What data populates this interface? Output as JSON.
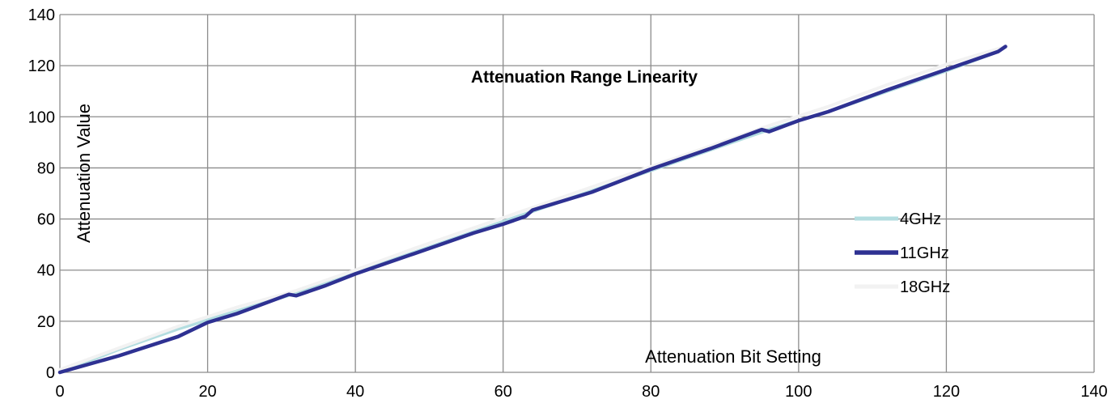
{
  "chart_data": {
    "type": "line",
    "title": "Attenuation Range Linearity",
    "xlabel": "Attenuation Bit Setting",
    "ylabel": "Attenuation Value",
    "xlim": [
      0,
      140
    ],
    "ylim": [
      0,
      140
    ],
    "xticks": [
      0,
      20,
      40,
      60,
      80,
      100,
      120,
      140
    ],
    "yticks": [
      0,
      20,
      40,
      60,
      80,
      100,
      120,
      140
    ],
    "grid": true,
    "legend_position": "right",
    "series": [
      {
        "name": "4GHz",
        "color": "#b3dde0",
        "x": [
          0,
          8,
          16,
          24,
          32,
          40,
          48,
          56,
          64,
          72,
          80,
          88,
          96,
          104,
          112,
          120,
          127
        ],
        "y": [
          0,
          9,
          17,
          24,
          31,
          39,
          47,
          55,
          63,
          71,
          79,
          87,
          95,
          102,
          110,
          118,
          125.5
        ]
      },
      {
        "name": "11GHz",
        "color": "#2e3192",
        "x": [
          0,
          8,
          16,
          20,
          24,
          31,
          32,
          36,
          40,
          48,
          56,
          60,
          63,
          64,
          68,
          72,
          80,
          88,
          95,
          96,
          100,
          104,
          112,
          120,
          127,
          128
        ],
        "y": [
          0,
          6.5,
          14,
          19.5,
          23,
          30.5,
          30,
          34,
          38.5,
          46.5,
          54.5,
          58,
          61,
          63.5,
          67,
          70.5,
          79.5,
          87.5,
          95,
          94.2,
          98.5,
          102,
          110.5,
          118.5,
          125.5,
          127.5
        ]
      },
      {
        "name": "18GHz",
        "color": "#f2f2f2",
        "x": [
          0,
          8,
          16,
          24,
          32,
          40,
          48,
          56,
          64,
          72,
          80,
          88,
          96,
          104,
          112,
          120,
          128
        ],
        "y": [
          1,
          9.5,
          18,
          25.5,
          32,
          40,
          48.5,
          56.5,
          64.5,
          72.5,
          80.5,
          88.5,
          96.5,
          104,
          112.5,
          120.5,
          127.5
        ]
      }
    ]
  }
}
